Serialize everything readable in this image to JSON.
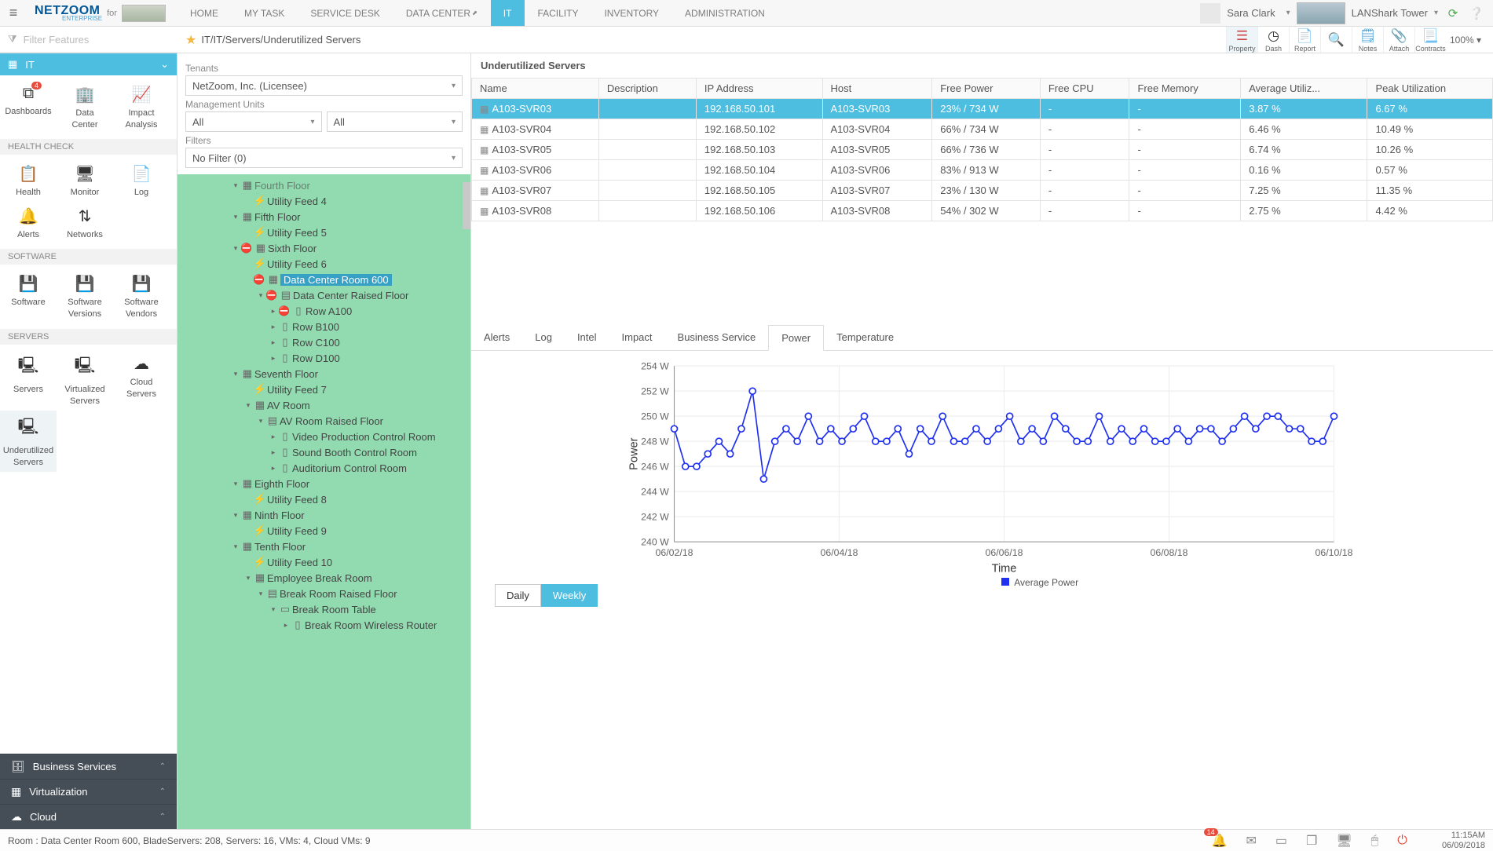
{
  "app": {
    "name": "NETZOOM",
    "sub": "ENTERPRISE",
    "for": "for"
  },
  "nav": {
    "items": [
      "HOME",
      "MY TASK",
      "SERVICE DESK",
      "DATA CENTER",
      "IT",
      "FACILITY",
      "INVENTORY",
      "ADMINISTRATION"
    ],
    "active": 4
  },
  "user": {
    "name": "Sara Clark"
  },
  "location": {
    "name": "LANShark Tower"
  },
  "breadcrumb": "IT/IT/Servers/Underutilized Servers",
  "filter_placeholder": "Filter Features",
  "right_icons": [
    {
      "label": "Property",
      "glyph": "☰",
      "color": "#c44"
    },
    {
      "label": "Dash",
      "glyph": "◷",
      "color": "#333"
    },
    {
      "label": "Report",
      "glyph": "📄",
      "color": "#c33"
    },
    {
      "label": "",
      "glyph": "🔍",
      "color": "#666"
    },
    {
      "label": "Notes",
      "glyph": "🗒",
      "color": "#3b9ad6"
    },
    {
      "label": "Attach",
      "glyph": "📎",
      "color": "#666"
    },
    {
      "label": "Contracts",
      "glyph": "📃",
      "color": "#666"
    }
  ],
  "zoom": "100%",
  "it_ribbon": {
    "label": "IT"
  },
  "sidebar_groups": [
    {
      "title": null,
      "items": [
        {
          "label": "Dashboards",
          "badge": "4"
        },
        {
          "label": "Data Center"
        },
        {
          "label": "Impact Analysis"
        }
      ]
    },
    {
      "title": "HEALTH CHECK",
      "items": [
        {
          "label": "Health"
        },
        {
          "label": "Monitor"
        },
        {
          "label": "Log"
        },
        {
          "label": "Alerts"
        },
        {
          "label": "Networks"
        }
      ]
    },
    {
      "title": "SOFTWARE",
      "items": [
        {
          "label": "Software"
        },
        {
          "label": "Software Versions"
        },
        {
          "label": "Software Vendors"
        }
      ]
    },
    {
      "title": "SERVERS",
      "items": [
        {
          "label": "Servers"
        },
        {
          "label": "Virtualized Servers"
        },
        {
          "label": "Cloud Servers"
        },
        {
          "label": "Underutilized Servers",
          "active": true
        }
      ]
    }
  ],
  "accordion": [
    {
      "label": "Business Services",
      "glyph": "🗄"
    },
    {
      "label": "Virtualization",
      "glyph": "▦"
    },
    {
      "label": "Cloud",
      "glyph": "☁"
    }
  ],
  "mid": {
    "tenants_label": "Tenants",
    "tenants_value": "NetZoom, Inc. (Licensee)",
    "mu_label": "Management Units",
    "mu_values": [
      "All",
      "All"
    ],
    "filters_label": "Filters",
    "filters_value": "No Filter (0)"
  },
  "tree": [
    {
      "depth": 3,
      "arr": "▾",
      "ic": "▦",
      "label": "Fourth Floor",
      "faded": true
    },
    {
      "depth": 4,
      "arr": "",
      "ic": "⚡",
      "label": "Utility Feed 4"
    },
    {
      "depth": 3,
      "arr": "▾",
      "ic": "▦",
      "label": "Fifth Floor"
    },
    {
      "depth": 4,
      "arr": "",
      "ic": "⚡",
      "label": "Utility Feed 5"
    },
    {
      "depth": 3,
      "arr": "▾",
      "ic": "▦",
      "label": "Sixth Floor",
      "err": true
    },
    {
      "depth": 4,
      "arr": "",
      "ic": "⚡",
      "label": "Utility Feed 6"
    },
    {
      "depth": 4,
      "arr": "",
      "ic": "▦",
      "label": "Data Center Room 600",
      "err": true,
      "sel": true
    },
    {
      "depth": 5,
      "arr": "▾",
      "ic": "▤",
      "label": "Data Center Raised Floor",
      "err": true
    },
    {
      "depth": 6,
      "arr": "▸",
      "ic": "▯",
      "label": "Row A100",
      "err": true
    },
    {
      "depth": 6,
      "arr": "▸",
      "ic": "▯",
      "label": "Row B100"
    },
    {
      "depth": 6,
      "arr": "▸",
      "ic": "▯",
      "label": "Row C100"
    },
    {
      "depth": 6,
      "arr": "▸",
      "ic": "▯",
      "label": "Row D100"
    },
    {
      "depth": 3,
      "arr": "▾",
      "ic": "▦",
      "label": "Seventh Floor"
    },
    {
      "depth": 4,
      "arr": "",
      "ic": "⚡",
      "label": "Utility Feed 7"
    },
    {
      "depth": 4,
      "arr": "▾",
      "ic": "▦",
      "label": "AV Room"
    },
    {
      "depth": 5,
      "arr": "▾",
      "ic": "▤",
      "label": "AV Room Raised Floor"
    },
    {
      "depth": 6,
      "arr": "▸",
      "ic": "▯",
      "label": "Video Production Control Room"
    },
    {
      "depth": 6,
      "arr": "▸",
      "ic": "▯",
      "label": "Sound Booth Control Room"
    },
    {
      "depth": 6,
      "arr": "▸",
      "ic": "▯",
      "label": "Auditorium Control Room"
    },
    {
      "depth": 3,
      "arr": "▾",
      "ic": "▦",
      "label": "Eighth Floor"
    },
    {
      "depth": 4,
      "arr": "",
      "ic": "⚡",
      "label": "Utility Feed 8"
    },
    {
      "depth": 3,
      "arr": "▾",
      "ic": "▦",
      "label": "Ninth Floor"
    },
    {
      "depth": 4,
      "arr": "",
      "ic": "⚡",
      "label": "Utility Feed 9"
    },
    {
      "depth": 3,
      "arr": "▾",
      "ic": "▦",
      "label": "Tenth Floor"
    },
    {
      "depth": 4,
      "arr": "",
      "ic": "⚡",
      "label": "Utility Feed 10"
    },
    {
      "depth": 4,
      "arr": "▾",
      "ic": "▦",
      "label": "Employee Break Room"
    },
    {
      "depth": 5,
      "arr": "▾",
      "ic": "▤",
      "label": "Break Room Raised Floor"
    },
    {
      "depth": 6,
      "arr": "▾",
      "ic": "▭",
      "label": "Break Room Table"
    },
    {
      "depth": 7,
      "arr": "▸",
      "ic": "▯",
      "label": "Break Room Wireless Router"
    }
  ],
  "table": {
    "title": "Underutilized Servers",
    "columns": [
      "Name",
      "Description",
      "IP Address",
      "Host",
      "Free Power",
      "Free CPU",
      "Free Memory",
      "Average Utiliz...",
      "Peak Utilization"
    ],
    "col_widths": [
      "95",
      "95",
      "95",
      "95",
      "95",
      "95",
      "95",
      "95",
      "95"
    ],
    "rows": [
      {
        "sel": true,
        "cells": [
          "A103-SVR03",
          "",
          "192.168.50.101",
          "A103-SVR03",
          "23% / 734 W",
          "-",
          "-",
          "3.87 %",
          "6.67 %"
        ]
      },
      {
        "cells": [
          "A103-SVR04",
          "",
          "192.168.50.102",
          "A103-SVR04",
          "66% / 734 W",
          "-",
          "-",
          "6.46 %",
          "10.49 %"
        ]
      },
      {
        "cells": [
          "A103-SVR05",
          "",
          "192.168.50.103",
          "A103-SVR05",
          "66% / 736 W",
          "-",
          "-",
          "6.74 %",
          "10.26 %"
        ]
      },
      {
        "cells": [
          "A103-SVR06",
          "",
          "192.168.50.104",
          "A103-SVR06",
          "83% / 913 W",
          "-",
          "-",
          "0.16 %",
          "0.57 %"
        ]
      },
      {
        "cells": [
          "A103-SVR07",
          "",
          "192.168.50.105",
          "A103-SVR07",
          "23% / 130 W",
          "-",
          "-",
          "7.25 %",
          "11.35 %"
        ]
      },
      {
        "cells": [
          "A103-SVR08",
          "",
          "192.168.50.106",
          "A103-SVR08",
          "54% / 302 W",
          "-",
          "-",
          "2.75 %",
          "4.42 %"
        ]
      }
    ]
  },
  "detail_tabs": {
    "items": [
      "Alerts",
      "Log",
      "Intel",
      "Impact",
      "Business Service",
      "Power",
      "Temperature"
    ],
    "active": 5
  },
  "chart": {
    "type": "line",
    "title": "",
    "ylabel": "Power",
    "xlabel": "Time",
    "ylim": [
      240,
      254
    ],
    "ytick_step": 2,
    "y_unit": " W",
    "x_ticks": [
      "06/02/18",
      "06/04/18",
      "06/06/18",
      "06/08/18",
      "06/10/18"
    ],
    "series_label": "Average Power",
    "line_color": "#2030f0",
    "marker_style": "circle-open",
    "marker_size": 5,
    "background": "#ffffff",
    "grid_color": "#ededed",
    "values": [
      249,
      246,
      246,
      247,
      248,
      247,
      249,
      252,
      245,
      248,
      249,
      248,
      250,
      248,
      249,
      248,
      249,
      250,
      248,
      248,
      249,
      247,
      249,
      248,
      250,
      248,
      248,
      249,
      248,
      249,
      250,
      248,
      249,
      248,
      250,
      249,
      248,
      248,
      250,
      248,
      249,
      248,
      249,
      248,
      248,
      249,
      248,
      249,
      249,
      248,
      249,
      250,
      249,
      250,
      250,
      249,
      249,
      248,
      248,
      250
    ]
  },
  "time_toggle": {
    "items": [
      "Daily",
      "Weekly"
    ],
    "active": 1
  },
  "footer": {
    "status": "Room : Data Center Room 600, BladeServers: 208, Servers: 16, VMs: 4, Cloud VMs: 9",
    "badge": "14",
    "time": "11:15AM",
    "date": "06/09/2018"
  }
}
